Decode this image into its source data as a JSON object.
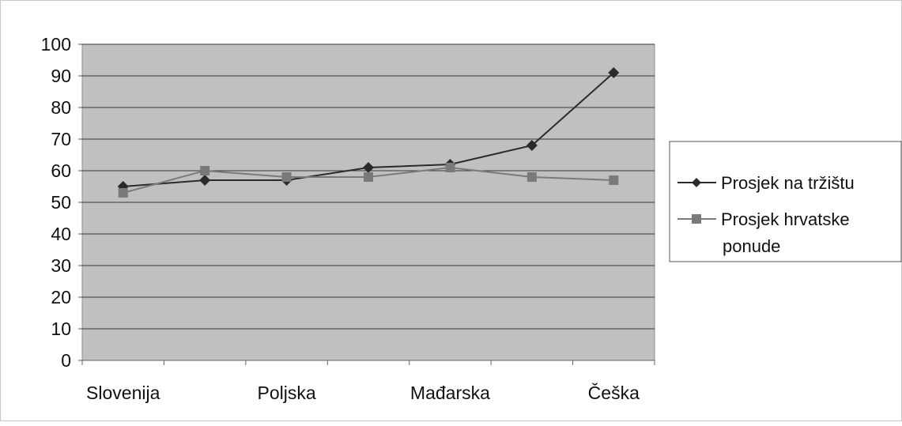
{
  "chart_data": {
    "type": "line",
    "categories": [
      "Slovenija",
      "",
      "Poljska",
      "",
      "Mađarska",
      "",
      "Češka"
    ],
    "x_tick_labels": [
      "Slovenija",
      "Poljska",
      "Mađarska",
      "Češka"
    ],
    "ylim": [
      0,
      100
    ],
    "yticks": [
      0,
      10,
      20,
      30,
      40,
      50,
      60,
      70,
      80,
      90,
      100
    ],
    "grid": true,
    "legend_position": "right",
    "plot_background": "#c0c0c0",
    "series": [
      {
        "name": "Prosjek na tržištu",
        "values": [
          55,
          57,
          57,
          61,
          62,
          68,
          91
        ],
        "color": "#2b2b2b",
        "marker": "diamond"
      },
      {
        "name": "Prosjek hrvatske ponude",
        "values": [
          53,
          60,
          58,
          58,
          61,
          58,
          57
        ],
        "color": "#7a7a7a",
        "marker": "square"
      }
    ]
  },
  "legend": {
    "line1": "Prosjek na tržištu",
    "line2a": "Prosjek hrvatske",
    "line2b": "ponude"
  }
}
